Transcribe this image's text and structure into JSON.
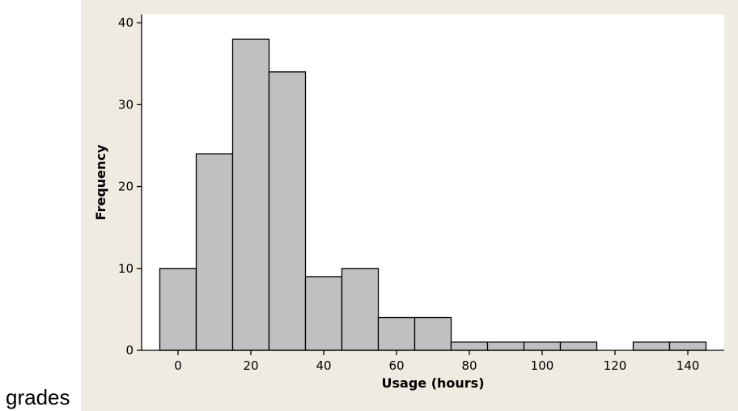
{
  "caption": "grades",
  "colors": {
    "figure_background": "#efebe2",
    "plot_background": "#ffffff",
    "bar_fill": "#c0c0c0",
    "bar_stroke": "#000000"
  },
  "chart_data": {
    "type": "bar",
    "subtype": "histogram",
    "title": "",
    "xlabel": "Usage (hours)",
    "ylabel": "Frequency",
    "xlim": [
      -10,
      150
    ],
    "ylim": [
      0,
      41
    ],
    "x_ticks": [
      0,
      20,
      40,
      60,
      80,
      100,
      120,
      140
    ],
    "x_tick_labels": [
      "0",
      "20",
      "40",
      "60",
      "80",
      "100",
      "120",
      "140"
    ],
    "y_ticks": [
      0,
      10,
      20,
      30,
      40
    ],
    "y_tick_labels": [
      "0",
      "10",
      "20",
      "30",
      "40"
    ],
    "bin_width": 10,
    "bin_centers": [
      0,
      10,
      20,
      30,
      40,
      50,
      60,
      70,
      80,
      90,
      100,
      110,
      120,
      130,
      140
    ],
    "values": [
      10,
      24,
      38,
      34,
      9,
      10,
      4,
      4,
      1,
      1,
      1,
      1,
      0,
      1,
      1
    ],
    "grid": false,
    "legend": "none"
  }
}
